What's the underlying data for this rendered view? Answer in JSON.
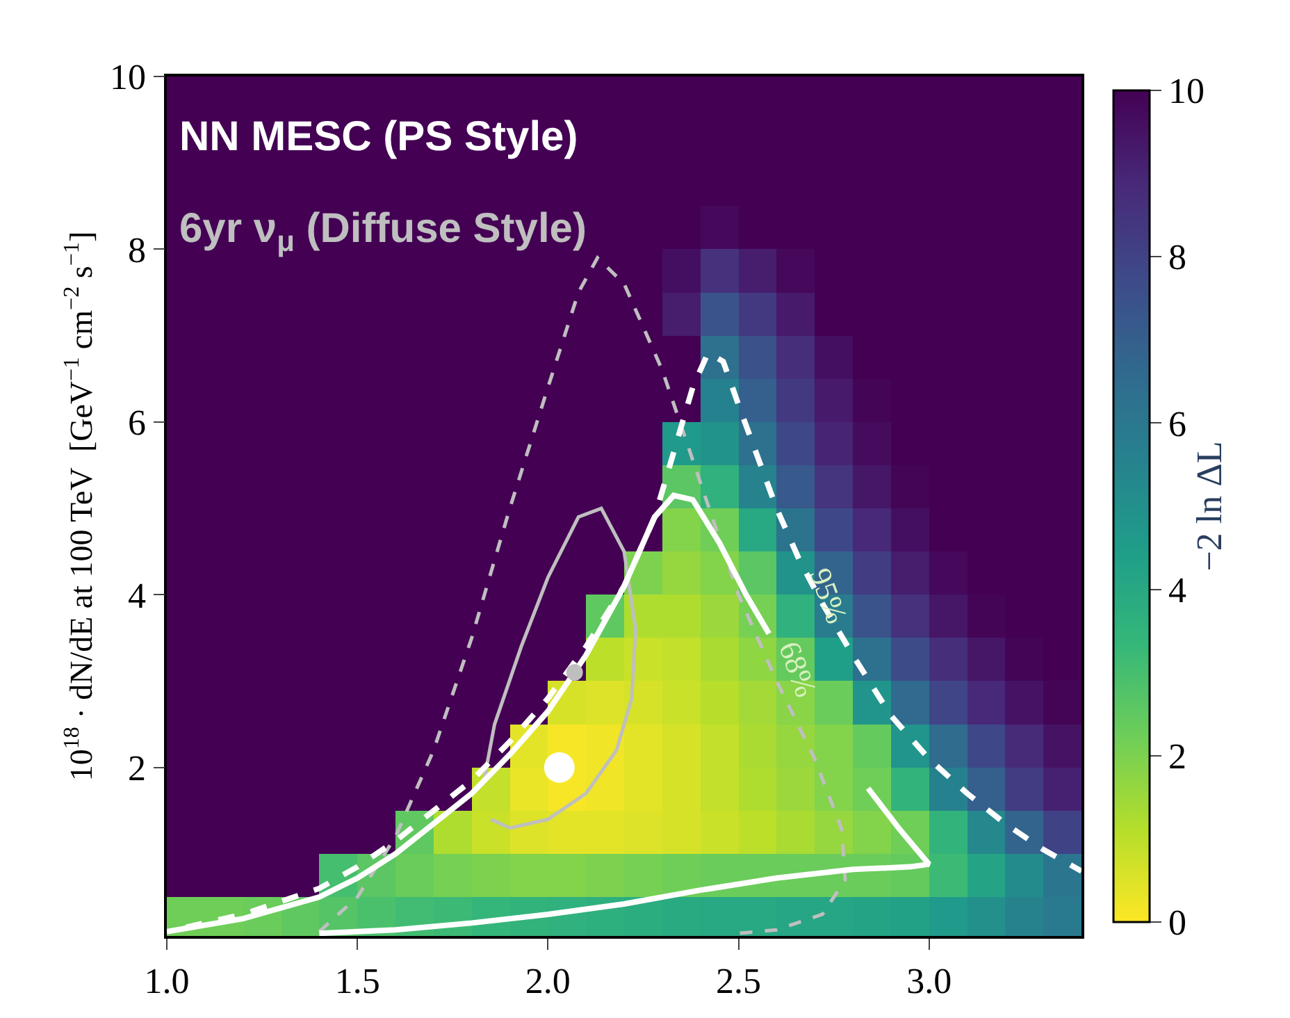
{
  "chart_data": {
    "type": "heatmap",
    "ylabel": "10$^{18}$ · dN/dE at 100 TeV  [GeV$^{−1}$ cm$^{−2}$ s$^{−1}$]",
    "clabel": "−2 ln ΔL",
    "x": [
      1.05,
      1.15,
      1.25,
      1.35,
      1.45,
      1.55,
      1.65,
      1.75,
      1.85,
      1.95,
      2.05,
      2.15,
      2.25,
      2.35,
      2.45,
      2.55,
      2.65,
      2.75,
      2.85,
      2.95,
      3.05,
      3.15,
      3.25,
      3.35
    ],
    "y": [
      0.25,
      0.75,
      1.25,
      1.75,
      2.25,
      2.75,
      3.25,
      3.75,
      4.25,
      4.75,
      5.25,
      5.75,
      6.25,
      6.75,
      7.25,
      7.75,
      8.25,
      8.75,
      9.25,
      9.75
    ],
    "cells": [
      [
        2.2,
        2.2,
        2.3,
        2.5,
        2.7,
        2.9,
        3.1,
        3.2,
        3.4,
        3.5,
        3.6,
        3.7,
        3.8,
        3.9,
        4.0,
        4.0,
        4.1,
        4.1,
        4.2,
        4.3,
        4.6,
        5.0,
        5.5,
        5.9
      ],
      [
        10,
        10,
        10,
        10,
        3.0,
        2.6,
        2.3,
        2.1,
        2.0,
        1.9,
        1.9,
        2.0,
        2.1,
        2.2,
        2.3,
        2.3,
        2.3,
        2.3,
        2.3,
        2.4,
        3.2,
        4.2,
        5.2,
        6.1
      ],
      [
        10,
        10,
        10,
        10,
        10,
        10,
        2.5,
        1.2,
        0.8,
        0.5,
        0.4,
        0.4,
        0.5,
        0.6,
        0.8,
        1.0,
        1.3,
        1.6,
        1.9,
        2.2,
        3.5,
        5.3,
        6.8,
        8.0
      ],
      [
        10,
        10,
        10,
        10,
        10,
        10,
        10,
        10,
        0.9,
        0.3,
        0.1,
        0.2,
        0.4,
        0.6,
        0.9,
        1.2,
        1.5,
        1.9,
        2.2,
        3.5,
        5.6,
        7.0,
        8.2,
        9.1
      ],
      [
        10,
        10,
        10,
        10,
        10,
        10,
        10,
        10,
        10,
        0.4,
        0.1,
        0.2,
        0.4,
        0.6,
        0.9,
        1.3,
        1.6,
        1.9,
        2.4,
        4.8,
        6.5,
        7.8,
        8.8,
        9.5
      ],
      [
        10,
        10,
        10,
        10,
        10,
        10,
        10,
        10,
        10,
        10,
        0.6,
        0.5,
        0.6,
        0.8,
        1.1,
        1.4,
        1.8,
        2.3,
        4.8,
        6.6,
        7.9,
        8.9,
        9.5,
        9.9
      ],
      [
        10,
        10,
        10,
        10,
        10,
        10,
        10,
        10,
        10,
        10,
        10,
        1.0,
        0.8,
        0.9,
        1.3,
        1.7,
        2.4,
        4.4,
        6.3,
        7.7,
        8.7,
        9.4,
        9.9,
        10
      ],
      [
        10,
        10,
        10,
        10,
        10,
        10,
        10,
        10,
        10,
        10,
        10,
        2.5,
        1.2,
        1.2,
        1.5,
        2.1,
        3.6,
        5.8,
        7.4,
        8.6,
        9.4,
        9.9,
        10,
        10
      ],
      [
        10,
        10,
        10,
        10,
        10,
        10,
        10,
        10,
        10,
        10,
        10,
        10,
        2.0,
        1.6,
        1.9,
        2.6,
        4.9,
        6.8,
        8.2,
        9.2,
        9.8,
        10,
        10,
        10
      ],
      [
        10,
        10,
        10,
        10,
        10,
        10,
        10,
        10,
        10,
        10,
        10,
        10,
        10,
        1.9,
        2.2,
        4.0,
        6.2,
        7.8,
        8.9,
        9.6,
        10,
        10,
        10,
        10
      ],
      [
        10,
        10,
        10,
        10,
        10,
        10,
        10,
        10,
        10,
        10,
        10,
        10,
        10,
        2.6,
        3.6,
        5.5,
        7.2,
        8.5,
        9.4,
        9.9,
        10,
        10,
        10,
        10
      ],
      [
        10,
        10,
        10,
        10,
        10,
        10,
        10,
        10,
        10,
        10,
        10,
        10,
        10,
        4.6,
        4.9,
        6.3,
        7.8,
        9.0,
        9.7,
        10,
        10,
        10,
        10,
        10
      ],
      [
        10,
        10,
        10,
        10,
        10,
        10,
        10,
        10,
        10,
        10,
        10,
        10,
        10,
        10,
        5.6,
        7.0,
        8.3,
        9.3,
        9.9,
        10,
        10,
        10,
        10,
        10
      ],
      [
        10,
        10,
        10,
        10,
        10,
        10,
        10,
        10,
        10,
        10,
        10,
        10,
        10,
        10,
        6.3,
        7.5,
        8.7,
        9.6,
        10,
        10,
        10,
        10,
        10,
        10
      ],
      [
        10,
        10,
        10,
        10,
        10,
        10,
        10,
        10,
        10,
        10,
        10,
        10,
        10,
        9.2,
        7.4,
        8.3,
        9.3,
        10,
        10,
        10,
        10,
        10,
        10,
        10
      ],
      [
        10,
        10,
        10,
        10,
        10,
        10,
        10,
        10,
        10,
        10,
        10,
        10,
        10,
        9.6,
        8.6,
        9.2,
        9.8,
        10,
        10,
        10,
        10,
        10,
        10,
        10
      ],
      [
        10,
        10,
        10,
        10,
        10,
        10,
        10,
        10,
        10,
        10,
        10,
        10,
        10,
        10,
        9.8,
        10,
        10,
        10,
        10,
        10,
        10,
        10,
        10,
        10
      ],
      [
        10,
        10,
        10,
        10,
        10,
        10,
        10,
        10,
        10,
        10,
        10,
        10,
        10,
        10,
        10,
        10,
        10,
        10,
        10,
        10,
        10,
        10,
        10,
        10
      ],
      [
        10,
        10,
        10,
        10,
        10,
        10,
        10,
        10,
        10,
        10,
        10,
        10,
        10,
        10,
        10,
        10,
        10,
        10,
        10,
        10,
        10,
        10,
        10,
        10
      ],
      [
        10,
        10,
        10,
        10,
        10,
        10,
        10,
        10,
        10,
        10,
        10,
        10,
        10,
        10,
        10,
        10,
        10,
        10,
        10,
        10,
        10,
        10,
        10,
        10
      ]
    ],
    "clim": [
      0,
      10
    ],
    "cticks": [
      0,
      2,
      4,
      6,
      8,
      10
    ],
    "xlim": [
      1.0,
      3.4
    ],
    "xticks": [
      {
        "value": 1.0,
        "label": "1.0"
      },
      1.5,
      {
        "value": 2.0,
        "label": "2.0"
      },
      2.5,
      {
        "value": 3.0,
        "label": "3.0"
      }
    ],
    "ylim": [
      0.05,
      10
    ],
    "yticks": [
      2,
      4,
      6,
      8,
      10
    ],
    "series": [
      {
        "type": "line",
        "color": "#bfbfbf",
        "line_style": "dashed",
        "x": [
          1.4,
          1.5,
          1.6,
          1.7,
          1.8,
          1.9,
          2.0,
          2.08,
          2.13,
          2.2,
          2.3,
          2.4,
          2.5,
          2.6,
          2.7,
          2.77,
          2.78,
          2.72,
          2.6,
          2.5
        ],
        "values": [
          0.1,
          0.5,
          1.2,
          2.2,
          3.5,
          5.0,
          6.4,
          7.5,
          7.9,
          7.6,
          6.6,
          5.3,
          4.0,
          3.0,
          2.1,
          1.3,
          0.7,
          0.3,
          0.12,
          0.08
        ]
      },
      {
        "type": "line",
        "color": "#bfbfbf",
        "line_style": "solid",
        "x": [
          1.85,
          1.9,
          2.0,
          2.1,
          2.18,
          2.22,
          2.23,
          2.2,
          2.14,
          2.08,
          2.0,
          1.93,
          1.86,
          1.83
        ],
        "values": [
          1.4,
          1.3,
          1.4,
          1.7,
          2.2,
          2.8,
          3.6,
          4.5,
          5.0,
          4.9,
          4.2,
          3.4,
          2.5,
          1.8
        ]
      },
      {
        "type": "scatter",
        "color": "#bfbfbf",
        "marker": "circle",
        "x": [
          2.07
        ],
        "values": [
          3.1
        ]
      },
      {
        "type": "line",
        "color": "#ffffff",
        "line_style": "dashed",
        "x": [
          1.05,
          1.2,
          1.3,
          1.4,
          1.5,
          1.6,
          1.7,
          1.8,
          1.9,
          2.0,
          2.1,
          2.2,
          2.28,
          2.34,
          2.38,
          2.42,
          2.46,
          2.5,
          2.55,
          2.6,
          2.66,
          2.72,
          2.8,
          2.9,
          3.0,
          3.1,
          3.2,
          3.3,
          3.4
        ],
        "values": [
          0.15,
          0.3,
          0.45,
          0.6,
          0.85,
          1.15,
          1.5,
          1.85,
          2.3,
          2.8,
          3.4,
          4.1,
          4.9,
          5.8,
          6.4,
          6.8,
          6.7,
          6.2,
          5.6,
          5.0,
          4.4,
          3.9,
          3.3,
          2.6,
          2.1,
          1.7,
          1.35,
          1.05,
          0.8
        ]
      },
      {
        "type": "line",
        "color": "#ffffff",
        "line_style": "solid",
        "x": [
          1.0,
          1.2,
          1.4,
          1.5,
          1.6,
          1.7,
          1.8,
          1.9,
          2.0,
          2.1,
          2.2,
          2.28,
          2.33,
          2.38,
          2.45,
          2.52,
          2.58,
          2.7,
          2.84,
          2.92,
          3.0,
          2.95,
          2.8,
          2.6,
          2.4,
          2.2,
          2.0,
          1.8,
          1.6,
          1.4
        ],
        "values": [
          0.1,
          0.25,
          0.5,
          0.72,
          1.0,
          1.35,
          1.7,
          2.15,
          2.65,
          3.3,
          4.1,
          4.9,
          5.15,
          5.1,
          4.6,
          4.0,
          3.55,
          null,
          1.76,
          1.3,
          0.88,
          0.85,
          0.82,
          0.72,
          0.58,
          0.42,
          0.3,
          0.2,
          0.12,
          0.08
        ]
      },
      {
        "type": "scatter",
        "color": "#ffffff",
        "marker": "circle",
        "x": [
          2.03
        ],
        "values": [
          2.0
        ]
      }
    ],
    "annotations": [
      "NN MESC (PS Style)",
      "6yr ν$_{μ}$ (Diffuse Style)",
      {
        "text": "95%",
        "x": 2.66,
        "y": 4.4
      },
      {
        "text": "68%",
        "x": 2.58,
        "y": 3.55
      }
    ]
  }
}
